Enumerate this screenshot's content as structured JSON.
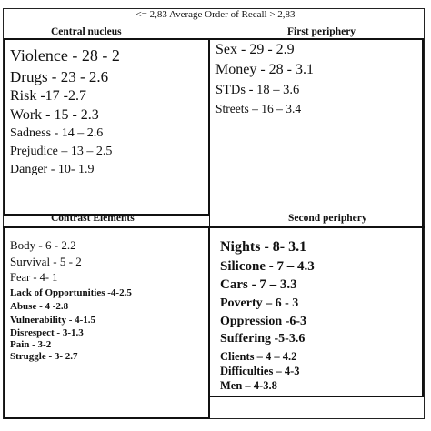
{
  "axis_label": "<= 2,83 Average Order of Recall > 2,83",
  "quadrants": {
    "central_nucleus": {
      "title": "Central nucleus",
      "items": [
        "Violence - 28 - 2",
        "Drugs - 23 - 2.6",
        "Risk -17 -2.7",
        "Work - 15 - 2.3",
        "Sadness - 14 – 2.6",
        "Prejudice – 13 – 2.5",
        "Danger - 10- 1.9"
      ]
    },
    "first_periphery": {
      "title": "First periphery",
      "items": [
        "Sex - 29 - 2.9",
        "Money - 28 - 3.1",
        "STDs - 18 – 3.6",
        "Streets – 16 – 3.4"
      ]
    },
    "contrast_elements": {
      "title": "Contrast Elements",
      "items": [
        "Body - 6 - 2.2",
        "Survival - 5 - 2",
        "Fear - 4- 1",
        "Lack of Opportunities -4-2.5",
        "Abuse - 4 -2.8",
        "Vulnerability - 4-1.5",
        "Disrespect - 3-1.3",
        "Pain - 3-2",
        "Struggle - 3- 2.7"
      ]
    },
    "second_periphery": {
      "title": "Second periphery",
      "items": [
        "Nights - 8- 3.1",
        "Silicone - 7 – 4.3",
        "Cars - 7 – 3.3",
        "Poverty – 6 - 3",
        "Oppression -6-3",
        "Suffering -5-3.6",
        "Clients – 4 – 4.2",
        "Difficulties – 4-3",
        "Men – 4-3.8"
      ]
    }
  },
  "colors": {
    "text": "#111111",
    "border": "#111111",
    "background": "#ffffff"
  }
}
